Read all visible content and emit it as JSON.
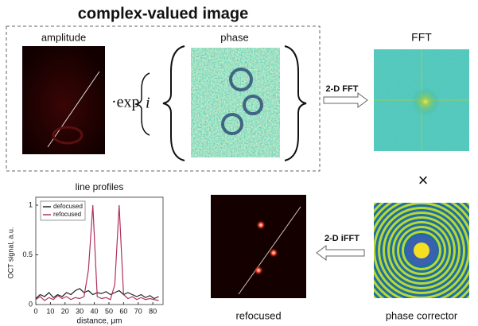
{
  "title": "complex-valued image",
  "amplitude": {
    "label": "amplitude"
  },
  "operator": {
    "exp": "·exp",
    "imag": "i"
  },
  "phase": {
    "label": "phase"
  },
  "fft_arrow": {
    "label": "2-D FFT"
  },
  "fft": {
    "label": "FFT"
  },
  "multiply": "×",
  "ifft_arrow": {
    "label": "2-D iFFT"
  },
  "phase_corrector": {
    "label": "phase corrector"
  },
  "refocused": {
    "label": "refocused"
  },
  "line_profiles": {
    "type": "line",
    "title": "line profiles",
    "x_label": "distance, μm",
    "y_label": "OCT signal, a.u.",
    "xlim": [
      0,
      87
    ],
    "ylim": [
      0,
      1.08
    ],
    "xticks": [
      0,
      10,
      20,
      30,
      40,
      50,
      60,
      70,
      80
    ],
    "yticks": [
      0,
      0.5,
      1
    ],
    "legend": "upper left",
    "x": [
      0,
      3,
      6,
      9,
      12,
      15,
      18,
      21,
      24,
      27,
      30,
      33,
      36,
      39,
      42,
      45,
      48,
      51,
      54,
      57,
      60,
      63,
      66,
      69,
      72,
      75,
      78,
      81,
      84
    ],
    "series": [
      {
        "name": "defocused",
        "color": "#222222",
        "values": [
          0.06,
          0.1,
          0.08,
          0.12,
          0.07,
          0.1,
          0.08,
          0.12,
          0.1,
          0.14,
          0.16,
          0.12,
          0.14,
          0.1,
          0.12,
          0.11,
          0.13,
          0.1,
          0.12,
          0.14,
          0.1,
          0.12,
          0.1,
          0.08,
          0.1,
          0.07,
          0.09,
          0.06,
          0.08
        ]
      },
      {
        "name": "refocused",
        "color": "#b03060",
        "values": [
          0.05,
          0.08,
          0.04,
          0.07,
          0.05,
          0.09,
          0.06,
          0.08,
          0.05,
          0.07,
          0.06,
          0.08,
          0.35,
          1.0,
          0.08,
          0.06,
          0.07,
          0.05,
          0.2,
          1.0,
          0.1,
          0.06,
          0.08,
          0.05,
          0.07,
          0.05,
          0.06,
          0.05,
          0.04
        ]
      }
    ]
  }
}
